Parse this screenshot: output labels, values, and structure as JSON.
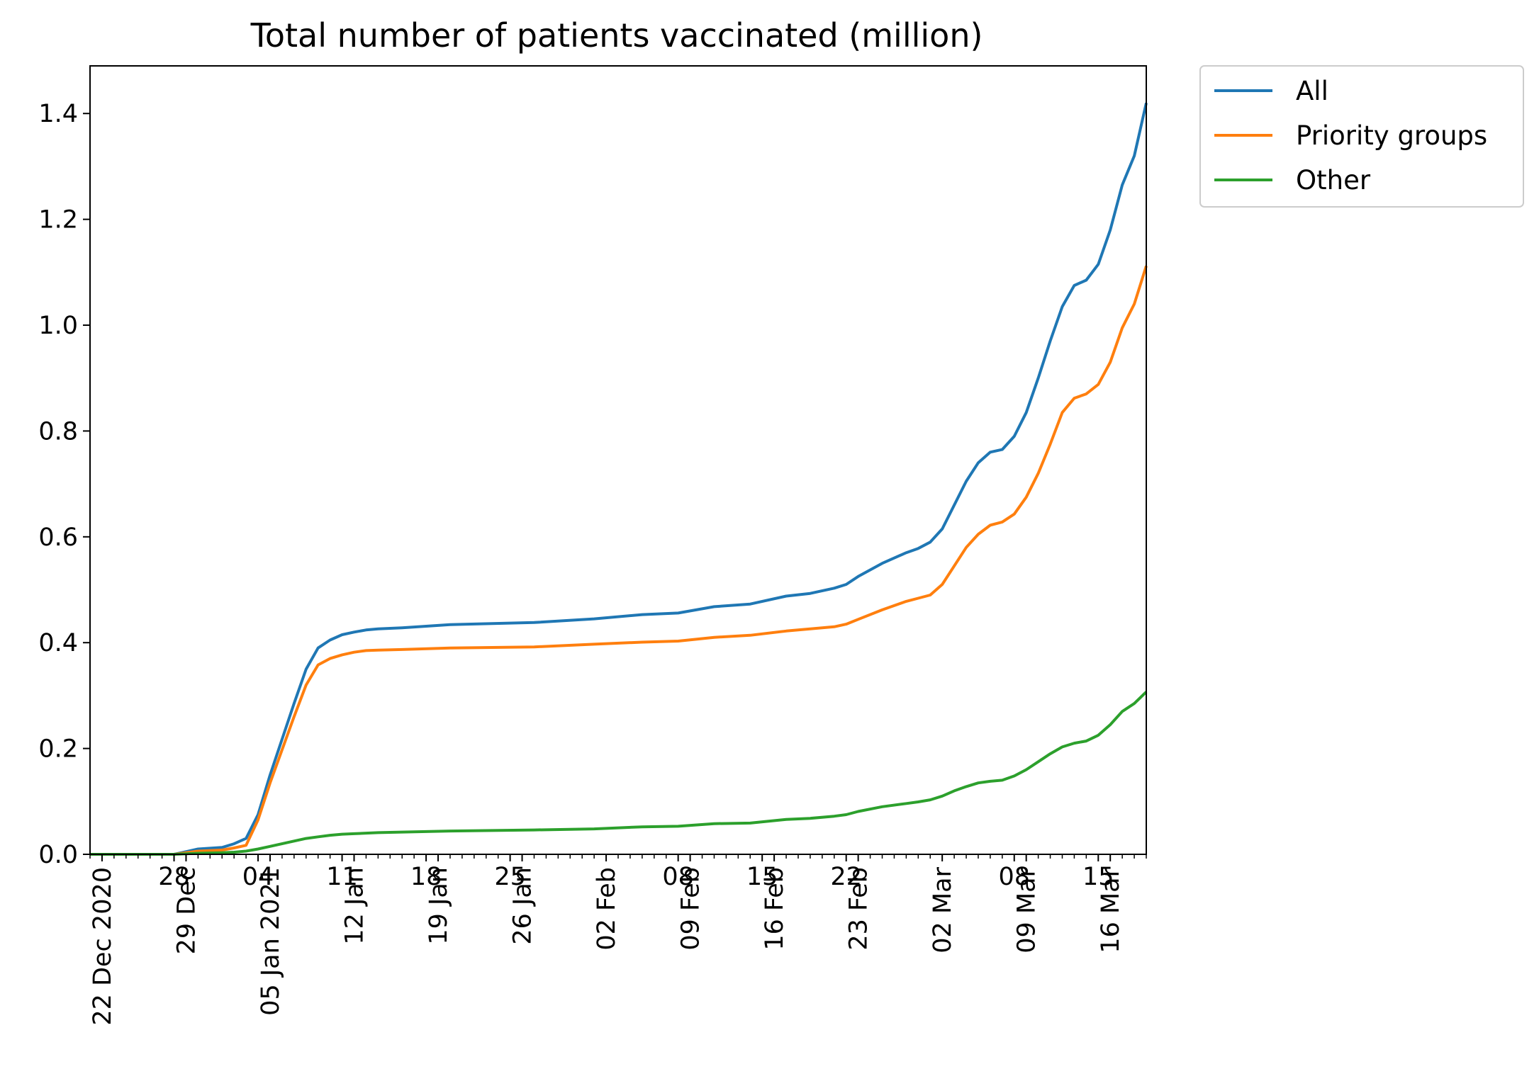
{
  "chart_data": {
    "type": "line",
    "title": "Total number of patients vaccinated (million)",
    "xlabel": "",
    "ylabel": "",
    "xlim": [
      "2020-12-21",
      "2021-03-19"
    ],
    "ylim": [
      0.0,
      1.49
    ],
    "grid": false,
    "legend_position": "outside-top-right",
    "y_ticks": [
      {
        "value": 0.0,
        "label": "0.0"
      },
      {
        "value": 0.2,
        "label": "0.2"
      },
      {
        "value": 0.4,
        "label": "0.4"
      },
      {
        "value": 0.6,
        "label": "0.6"
      },
      {
        "value": 0.8,
        "label": "0.8"
      },
      {
        "value": 1.0,
        "label": "1.0"
      },
      {
        "value": 1.2,
        "label": "1.2"
      },
      {
        "value": 1.4,
        "label": "1.4"
      }
    ],
    "x_major_ticks": [
      {
        "date": "2020-12-22",
        "label": "22 Dec 2020"
      },
      {
        "date": "2020-12-29",
        "label": "29 Dec"
      },
      {
        "date": "2021-01-05",
        "label": "05 Jan 2021"
      },
      {
        "date": "2021-01-12",
        "label": "12 Jan"
      },
      {
        "date": "2021-01-19",
        "label": "19 Jan"
      },
      {
        "date": "2021-01-26",
        "label": "26 Jan"
      },
      {
        "date": "2021-02-02",
        "label": "02 Feb"
      },
      {
        "date": "2021-02-09",
        "label": "09 Feb"
      },
      {
        "date": "2021-02-16",
        "label": "16 Feb"
      },
      {
        "date": "2021-02-23",
        "label": "23 Feb"
      },
      {
        "date": "2021-03-02",
        "label": "02 Mar"
      },
      {
        "date": "2021-03-09",
        "label": "09 Mar"
      },
      {
        "date": "2021-03-16",
        "label": "16 Mar"
      }
    ],
    "x_overlay_labels": [
      {
        "date": "2020-12-28",
        "label": "28"
      },
      {
        "date": "2021-01-04",
        "label": "04"
      },
      {
        "date": "2021-01-11",
        "label": "11"
      },
      {
        "date": "2021-01-18",
        "label": "18"
      },
      {
        "date": "2021-01-25",
        "label": "25"
      },
      {
        "date": "2021-02-08",
        "label": "08"
      },
      {
        "date": "2021-02-15",
        "label": "15"
      },
      {
        "date": "2021-02-22",
        "label": "22"
      },
      {
        "date": "2021-03-08",
        "label": "08"
      },
      {
        "date": "2021-03-15",
        "label": "15"
      }
    ],
    "x": [
      "2020-12-21",
      "2020-12-28",
      "2020-12-30",
      "2021-01-01",
      "2021-01-02",
      "2021-01-03",
      "2021-01-04",
      "2021-01-05",
      "2021-01-07",
      "2021-01-08",
      "2021-01-09",
      "2021-01-10",
      "2021-01-11",
      "2021-01-12",
      "2021-01-13",
      "2021-01-14",
      "2021-01-16",
      "2021-01-20",
      "2021-01-27",
      "2021-02-01",
      "2021-02-05",
      "2021-02-08",
      "2021-02-11",
      "2021-02-14",
      "2021-02-17",
      "2021-02-19",
      "2021-02-21",
      "2021-02-22",
      "2021-02-23",
      "2021-02-25",
      "2021-02-27",
      "2021-02-28",
      "2021-03-01",
      "2021-03-02",
      "2021-03-03",
      "2021-03-04",
      "2021-03-05",
      "2021-03-06",
      "2021-03-07",
      "2021-03-08",
      "2021-03-09",
      "2021-03-10",
      "2021-03-11",
      "2021-03-12",
      "2021-03-13",
      "2021-03-14",
      "2021-03-15",
      "2021-03-16",
      "2021-03-17",
      "2021-03-18",
      "2021-03-19"
    ],
    "series": [
      {
        "name": "All",
        "color": "#1f77b4",
        "values": [
          0.0,
          0.0,
          0.01,
          0.013,
          0.02,
          0.03,
          0.075,
          0.15,
          0.285,
          0.35,
          0.39,
          0.405,
          0.415,
          0.42,
          0.424,
          0.426,
          0.428,
          0.434,
          0.438,
          0.445,
          0.453,
          0.456,
          0.468,
          0.473,
          0.488,
          0.493,
          0.503,
          0.51,
          0.525,
          0.55,
          0.57,
          0.578,
          0.59,
          0.615,
          0.66,
          0.705,
          0.74,
          0.76,
          0.765,
          0.79,
          0.835,
          0.9,
          0.97,
          1.035,
          1.075,
          1.085,
          1.115,
          1.18,
          1.265,
          1.32,
          1.42
        ]
      },
      {
        "name": "Priority groups",
        "color": "#ff7f0e",
        "values": [
          0.0,
          0.0,
          0.006,
          0.008,
          0.012,
          0.017,
          0.065,
          0.135,
          0.26,
          0.32,
          0.358,
          0.37,
          0.377,
          0.382,
          0.385,
          0.386,
          0.387,
          0.39,
          0.392,
          0.397,
          0.401,
          0.403,
          0.41,
          0.414,
          0.422,
          0.426,
          0.43,
          0.435,
          0.444,
          0.462,
          0.478,
          0.484,
          0.49,
          0.51,
          0.545,
          0.58,
          0.605,
          0.622,
          0.628,
          0.643,
          0.675,
          0.72,
          0.775,
          0.835,
          0.862,
          0.87,
          0.888,
          0.93,
          0.995,
          1.04,
          1.112
        ]
      },
      {
        "name": "Other",
        "color": "#2ca02c",
        "values": [
          0.0,
          0.0,
          0.002,
          0.003,
          0.004,
          0.006,
          0.01,
          0.015,
          0.025,
          0.03,
          0.033,
          0.036,
          0.038,
          0.039,
          0.04,
          0.041,
          0.042,
          0.044,
          0.046,
          0.048,
          0.052,
          0.053,
          0.058,
          0.059,
          0.066,
          0.068,
          0.072,
          0.075,
          0.081,
          0.09,
          0.096,
          0.099,
          0.103,
          0.11,
          0.12,
          0.128,
          0.135,
          0.138,
          0.14,
          0.148,
          0.16,
          0.175,
          0.19,
          0.203,
          0.21,
          0.214,
          0.225,
          0.245,
          0.27,
          0.285,
          0.307
        ]
      }
    ]
  }
}
